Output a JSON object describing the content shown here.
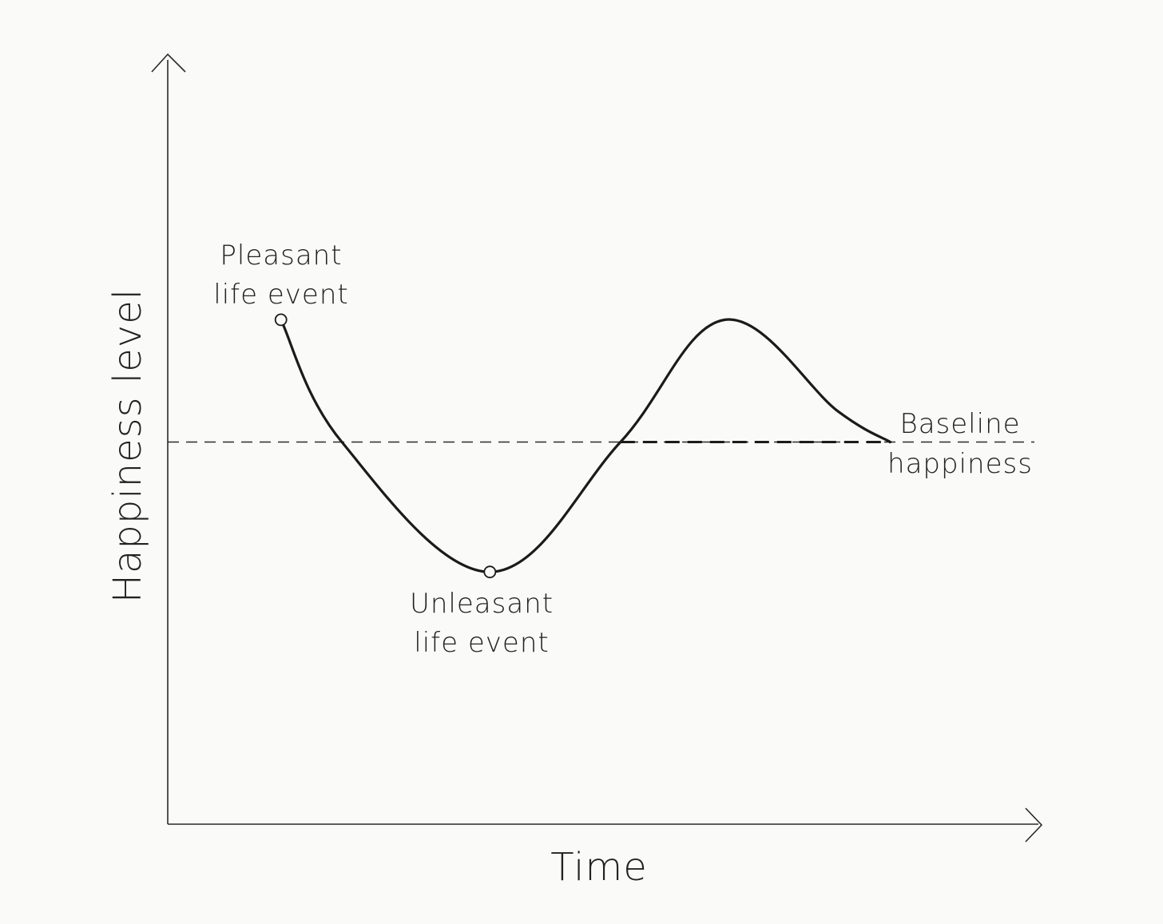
{
  "chart_data": {
    "type": "line",
    "title": "",
    "xlabel": "Time",
    "ylabel": "Happiness level",
    "grid": false,
    "legend": "none",
    "xlim": [
      0,
      100
    ],
    "ylim": [
      0,
      100
    ],
    "baseline": {
      "value": 50,
      "label_lines": [
        "Baseline",
        "happiness"
      ]
    },
    "series": [
      {
        "values": [
          {
            "x": 13,
            "y": 66
          },
          {
            "x": 20,
            "y": 50
          },
          {
            "x": 37,
            "y": 33
          },
          {
            "x": 52,
            "y": 50
          },
          {
            "x": 64,
            "y": 66
          },
          {
            "x": 77,
            "y": 54
          },
          {
            "x": 83,
            "y": 50
          },
          {
            "x": 100,
            "y": 50
          }
        ]
      }
    ],
    "annotations": [
      {
        "x": 13,
        "y": 66,
        "lines": [
          "Pleasant",
          "life event"
        ],
        "position": "above"
      },
      {
        "x": 37,
        "y": 33,
        "lines": [
          "Unleasant",
          "life event"
        ],
        "position": "below"
      }
    ],
    "colors": {
      "line": "#1b1b1b",
      "axis": "#2a2a2a",
      "background": "#fafaf8"
    }
  }
}
